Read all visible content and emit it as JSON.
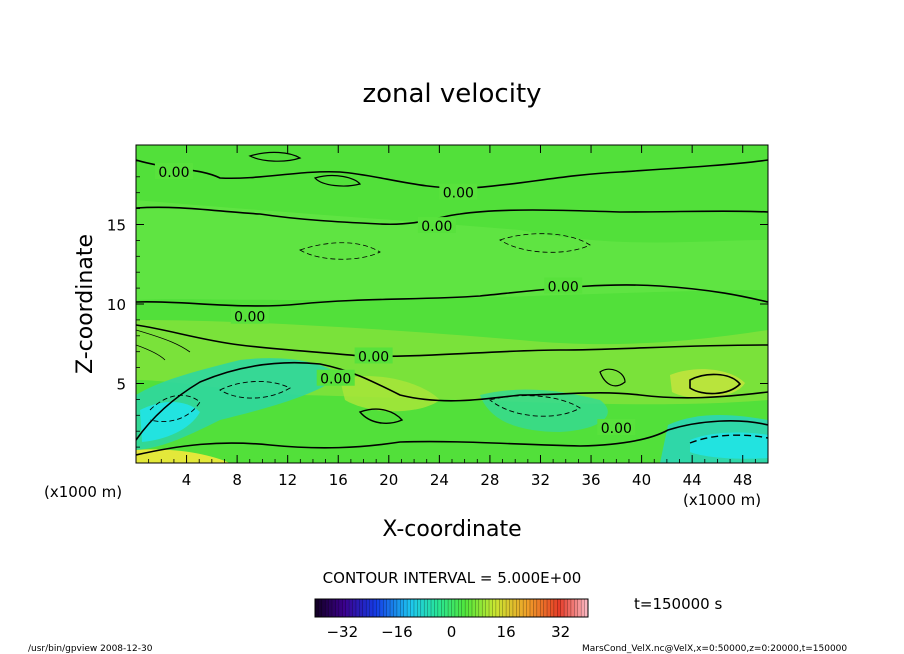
{
  "chart_data": {
    "type": "heatmap",
    "title": "zonal velocity",
    "xlabel": "X-coordinate",
    "ylabel": "Z-coordinate",
    "x_unit_left": "(x1000 m)",
    "x_unit_right": "(x1000 m)",
    "xlim": [
      0,
      50
    ],
    "ylim": [
      0,
      20
    ],
    "x_ticks": [
      4,
      8,
      12,
      16,
      20,
      24,
      28,
      32,
      36,
      40,
      44,
      48
    ],
    "y_ticks": [
      5,
      10,
      15
    ],
    "contour_interval_text": "CONTOUR INTERVAL = 5.000E+00",
    "contour_interval": 5,
    "colorbar": {
      "min": -40,
      "max": 40,
      "ticks": [
        -32,
        -16,
        0,
        16,
        32
      ]
    },
    "contour_labels": [
      {
        "x": 3.0,
        "z": 18.3,
        "text": "0.00"
      },
      {
        "x": 25.5,
        "z": 17.0,
        "text": "0.00"
      },
      {
        "x": 23.8,
        "z": 14.9,
        "text": "0.00"
      },
      {
        "x": 33.8,
        "z": 11.1,
        "text": "0.00"
      },
      {
        "x": 9.0,
        "z": 9.2,
        "text": "0.00"
      },
      {
        "x": 18.8,
        "z": 6.7,
        "text": "0.00"
      },
      {
        "x": 15.8,
        "z": 5.3,
        "text": "0.00"
      },
      {
        "x": 38.0,
        "z": 2.2,
        "text": "0.00"
      }
    ],
    "time_text": "t=150000 s"
  },
  "footer": {
    "left": "/usr/bin/gpview   2008-12-30",
    "right": "MarsCond_VelX.nc@VelX,x=0:50000,z=0:20000,t=150000"
  }
}
